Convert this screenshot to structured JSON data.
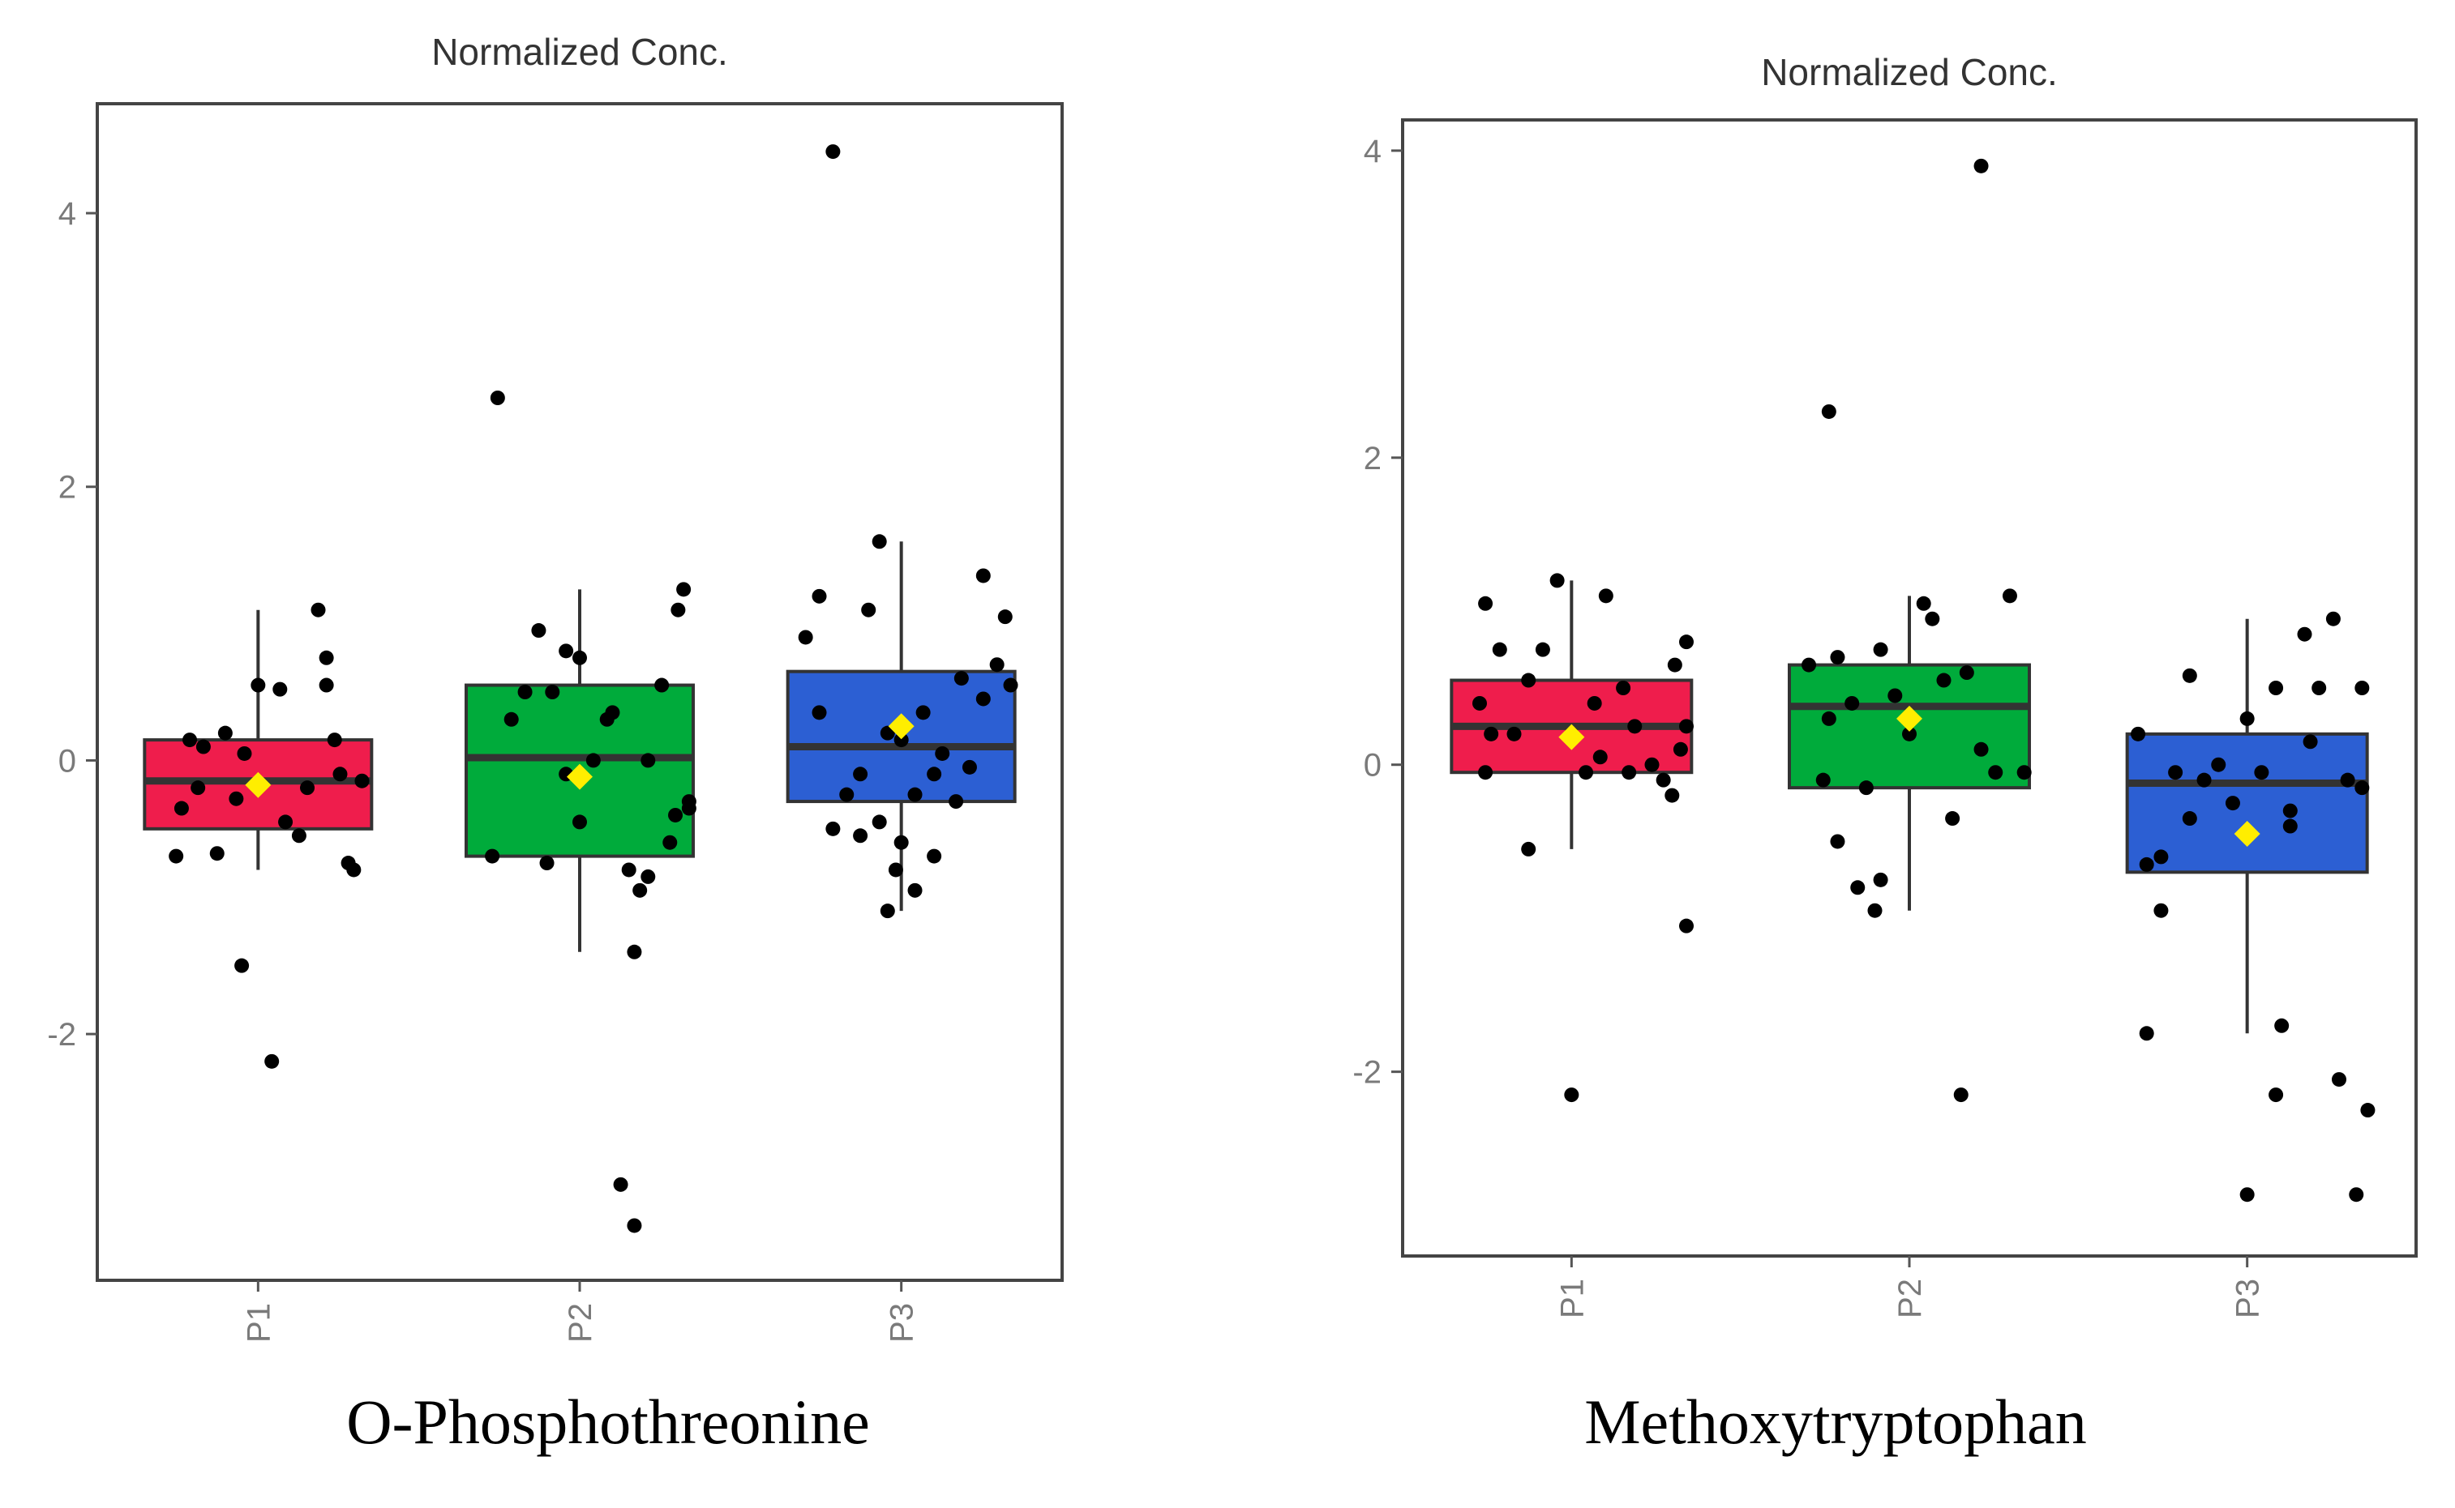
{
  "chart_data": [
    {
      "type": "box",
      "title": "Normalized Conc.",
      "caption": "O-Phosphothreonine",
      "categories": [
        "P1",
        "P2",
        "P3"
      ],
      "yticks": [
        -2,
        0,
        2,
        4
      ],
      "ylim": [
        -3.8,
        4.8
      ],
      "colors": [
        "#ef1d4c",
        "#00ab3b",
        "#2c5fd3"
      ],
      "mean_color": "#ffee00",
      "boxes": [
        {
          "group": "P1",
          "lower_whisker": -0.8,
          "q1": -0.5,
          "median": -0.15,
          "q3": 0.15,
          "upper_whisker": 1.1,
          "mean": -0.18,
          "points": [
            [
              -0.28,
              -0.35
            ],
            [
              -0.22,
              -0.2
            ],
            [
              -0.12,
              0.2
            ],
            [
              -0.08,
              -0.28
            ],
            [
              0.0,
              0.55
            ],
            [
              0.08,
              0.52
            ],
            [
              0.15,
              -0.55
            ],
            [
              0.22,
              1.1
            ],
            [
              0.28,
              0.15
            ],
            [
              0.35,
              -0.8
            ],
            [
              0.18,
              -0.2
            ],
            [
              0.1,
              -0.45
            ],
            [
              -0.2,
              0.1
            ],
            [
              0.3,
              -0.1
            ],
            [
              -0.3,
              -0.7
            ],
            [
              -0.15,
              -0.68
            ],
            [
              -0.05,
              0.05
            ],
            [
              0.05,
              -2.2
            ],
            [
              -0.06,
              -1.5
            ],
            [
              0.25,
              0.55
            ],
            [
              0.25,
              0.75
            ],
            [
              0.38,
              -0.15
            ],
            [
              0.33,
              -0.75
            ],
            [
              -0.25,
              0.15
            ]
          ]
        },
        {
          "group": "P2",
          "lower_whisker": -1.4,
          "q1": -0.7,
          "median": 0.02,
          "q3": 0.55,
          "upper_whisker": 1.25,
          "mean": -0.12,
          "points": [
            [
              -0.32,
              -0.7
            ],
            [
              -0.25,
              0.3
            ],
            [
              -0.2,
              0.5
            ],
            [
              -0.15,
              0.95
            ],
            [
              -0.1,
              0.5
            ],
            [
              -0.05,
              -0.1
            ],
            [
              0.0,
              0.75
            ],
            [
              0.05,
              0.0
            ],
            [
              0.1,
              0.3
            ],
            [
              0.12,
              0.35
            ],
            [
              0.18,
              -0.8
            ],
            [
              0.22,
              -0.95
            ],
            [
              0.25,
              0.0
            ],
            [
              0.3,
              0.55
            ],
            [
              0.33,
              -0.6
            ],
            [
              0.36,
              1.1
            ],
            [
              0.38,
              1.25
            ],
            [
              0.4,
              -0.3
            ],
            [
              0.4,
              -0.35
            ],
            [
              -0.12,
              -0.75
            ],
            [
              0.0,
              -0.45
            ],
            [
              0.2,
              -1.4
            ],
            [
              0.25,
              -0.85
            ],
            [
              0.15,
              -3.1
            ],
            [
              0.2,
              -3.4
            ],
            [
              -0.3,
              2.65
            ],
            [
              -0.05,
              0.8
            ],
            [
              0.35,
              -0.4
            ]
          ]
        },
        {
          "group": "P3",
          "lower_whisker": -1.1,
          "q1": -0.3,
          "median": 0.1,
          "q3": 0.65,
          "upper_whisker": 1.6,
          "mean": 0.25,
          "points": [
            [
              -0.35,
              0.9
            ],
            [
              -0.3,
              1.2
            ],
            [
              -0.25,
              -0.5
            ],
            [
              -0.2,
              -0.25
            ],
            [
              -0.12,
              1.1
            ],
            [
              -0.08,
              -0.45
            ],
            [
              -0.05,
              0.2
            ],
            [
              0.0,
              0.15
            ],
            [
              0.05,
              -0.25
            ],
            [
              0.08,
              0.35
            ],
            [
              0.12,
              -0.1
            ],
            [
              0.15,
              0.05
            ],
            [
              0.2,
              -0.3
            ],
            [
              0.22,
              0.6
            ],
            [
              0.25,
              -0.05
            ],
            [
              0.3,
              0.45
            ],
            [
              0.35,
              0.7
            ],
            [
              0.38,
              1.05
            ],
            [
              0.4,
              0.55
            ],
            [
              -0.15,
              -0.55
            ],
            [
              -0.02,
              -0.8
            ],
            [
              0.0,
              -0.6
            ],
            [
              0.05,
              -0.95
            ],
            [
              -0.05,
              -1.1
            ],
            [
              0.12,
              -0.7
            ],
            [
              -0.08,
              1.6
            ],
            [
              0.3,
              1.35
            ],
            [
              -0.15,
              -0.1
            ],
            [
              -0.3,
              0.35
            ],
            [
              -0.25,
              4.45
            ]
          ]
        }
      ]
    },
    {
      "type": "box",
      "title": "Normalized Conc.",
      "caption": "Methoxytryptophan",
      "categories": [
        "P1",
        "P2",
        "P3"
      ],
      "yticks": [
        -2,
        0,
        2,
        4
      ],
      "ylim": [
        -3.2,
        4.2
      ],
      "colors": [
        "#ef1d4c",
        "#00ab3b",
        "#2c5fd3"
      ],
      "mean_color": "#ffee00",
      "boxes": [
        {
          "group": "P1",
          "lower_whisker": -0.55,
          "q1": -0.05,
          "median": 0.25,
          "q3": 0.55,
          "upper_whisker": 1.2,
          "mean": 0.18,
          "points": [
            [
              -0.3,
              1.05
            ],
            [
              -0.25,
              0.75
            ],
            [
              -0.2,
              0.2
            ],
            [
              -0.15,
              0.55
            ],
            [
              -0.1,
              0.75
            ],
            [
              -0.05,
              1.2
            ],
            [
              0.0,
              0.2
            ],
            [
              0.05,
              -0.05
            ],
            [
              0.08,
              0.4
            ],
            [
              0.12,
              1.1
            ],
            [
              0.18,
              0.5
            ],
            [
              0.22,
              0.25
            ],
            [
              0.28,
              0.0
            ],
            [
              0.32,
              -0.1
            ],
            [
              0.36,
              0.65
            ],
            [
              0.4,
              0.8
            ],
            [
              0.4,
              0.25
            ],
            [
              0.38,
              0.1
            ],
            [
              -0.32,
              0.4
            ],
            [
              -0.28,
              0.2
            ],
            [
              -0.3,
              -0.05
            ],
            [
              0.2,
              -0.05
            ],
            [
              0.35,
              -0.2
            ],
            [
              -0.15,
              -0.55
            ],
            [
              0.4,
              -1.05
            ],
            [
              0.0,
              -2.15
            ],
            [
              0.1,
              0.05
            ]
          ]
        },
        {
          "group": "P2",
          "lower_whisker": -0.95,
          "q1": -0.15,
          "median": 0.38,
          "q3": 0.65,
          "upper_whisker": 1.1,
          "mean": 0.3,
          "points": [
            [
              -0.35,
              0.65
            ],
            [
              -0.3,
              -0.1
            ],
            [
              -0.28,
              0.3
            ],
            [
              -0.25,
              0.7
            ],
            [
              -0.2,
              0.4
            ],
            [
              -0.15,
              -0.15
            ],
            [
              -0.1,
              0.75
            ],
            [
              -0.05,
              0.45
            ],
            [
              0.0,
              0.2
            ],
            [
              0.05,
              1.05
            ],
            [
              0.08,
              0.95
            ],
            [
              0.12,
              0.55
            ],
            [
              0.15,
              -0.35
            ],
            [
              0.2,
              0.6
            ],
            [
              0.25,
              0.1
            ],
            [
              0.3,
              -0.05
            ],
            [
              0.35,
              1.1
            ],
            [
              -0.25,
              -0.5
            ],
            [
              -0.18,
              -0.8
            ],
            [
              -0.1,
              -0.75
            ],
            [
              -0.12,
              -0.95
            ],
            [
              -0.28,
              2.3
            ],
            [
              0.25,
              3.9
            ],
            [
              0.18,
              -2.15
            ],
            [
              0.4,
              -0.05
            ]
          ]
        },
        {
          "group": "P3",
          "lower_whisker": -1.75,
          "q1": -0.7,
          "median": -0.12,
          "q3": 0.2,
          "upper_whisker": 0.95,
          "mean": -0.45,
          "points": [
            [
              -0.38,
              0.2
            ],
            [
              -0.3,
              -0.6
            ],
            [
              -0.25,
              -0.05
            ],
            [
              -0.2,
              -0.35
            ],
            [
              -0.15,
              -0.1
            ],
            [
              -0.1,
              0.0
            ],
            [
              -0.05,
              -0.25
            ],
            [
              0.0,
              0.3
            ],
            [
              0.05,
              -0.05
            ],
            [
              0.1,
              0.5
            ],
            [
              0.15,
              -0.4
            ],
            [
              0.2,
              0.85
            ],
            [
              0.25,
              0.5
            ],
            [
              0.3,
              0.95
            ],
            [
              0.35,
              -0.1
            ],
            [
              0.4,
              -0.15
            ],
            [
              0.4,
              0.5
            ],
            [
              -0.35,
              -0.65
            ],
            [
              -0.3,
              -0.95
            ],
            [
              -0.2,
              0.58
            ],
            [
              0.15,
              -0.3
            ],
            [
              -0.35,
              -1.75
            ],
            [
              0.12,
              -1.7
            ],
            [
              0.1,
              -2.15
            ],
            [
              0.32,
              -2.05
            ],
            [
              0.42,
              -2.25
            ],
            [
              0.0,
              -2.8
            ],
            [
              0.38,
              -2.8
            ],
            [
              0.22,
              0.15
            ]
          ]
        }
      ]
    }
  ]
}
